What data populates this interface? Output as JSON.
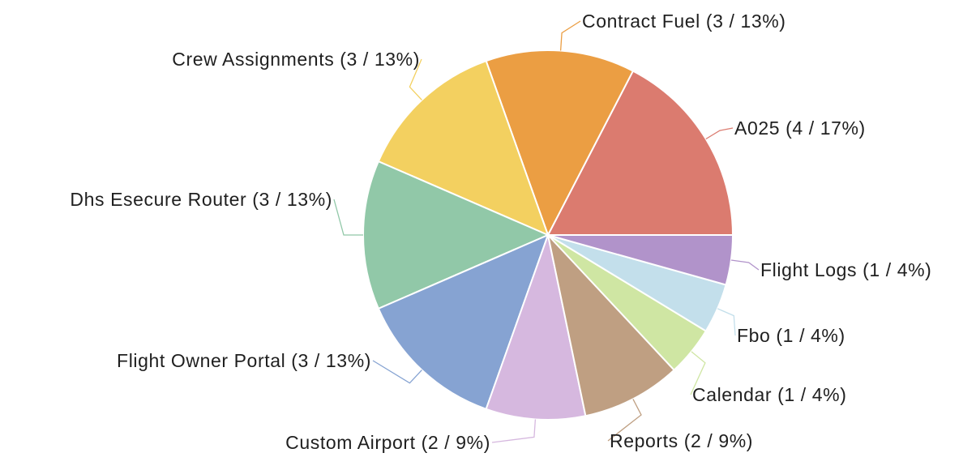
{
  "chart_data": {
    "type": "pie",
    "title": "",
    "slices": [
      {
        "label": "A025 (4 / 17%)",
        "value": 4,
        "color": "#db7b6f"
      },
      {
        "label": "Contract Fuel (3 / 13%)",
        "value": 3,
        "color": "#eb9e43"
      },
      {
        "label": "Crew Assignments (3 / 13%)",
        "value": 3,
        "color": "#f3d060"
      },
      {
        "label": "Dhs Esecure Router (3 / 13%)",
        "value": 3,
        "color": "#91c8a8"
      },
      {
        "label": "Flight Owner Portal (3 / 13%)",
        "value": 3,
        "color": "#86a3d2"
      },
      {
        "label": "Custom Airport (2 / 9%)",
        "value": 2,
        "color": "#d6b8df"
      },
      {
        "label": "Reports (2 / 9%)",
        "value": 2,
        "color": "#bf9f82"
      },
      {
        "label": "Calendar (1 / 4%)",
        "value": 1,
        "color": "#cfe6a3"
      },
      {
        "label": "Fbo (1 / 4%)",
        "value": 1,
        "color": "#c3dfeb"
      },
      {
        "label": "Flight Logs (1 / 4%)",
        "value": 1,
        "color": "#b193ca"
      }
    ]
  }
}
